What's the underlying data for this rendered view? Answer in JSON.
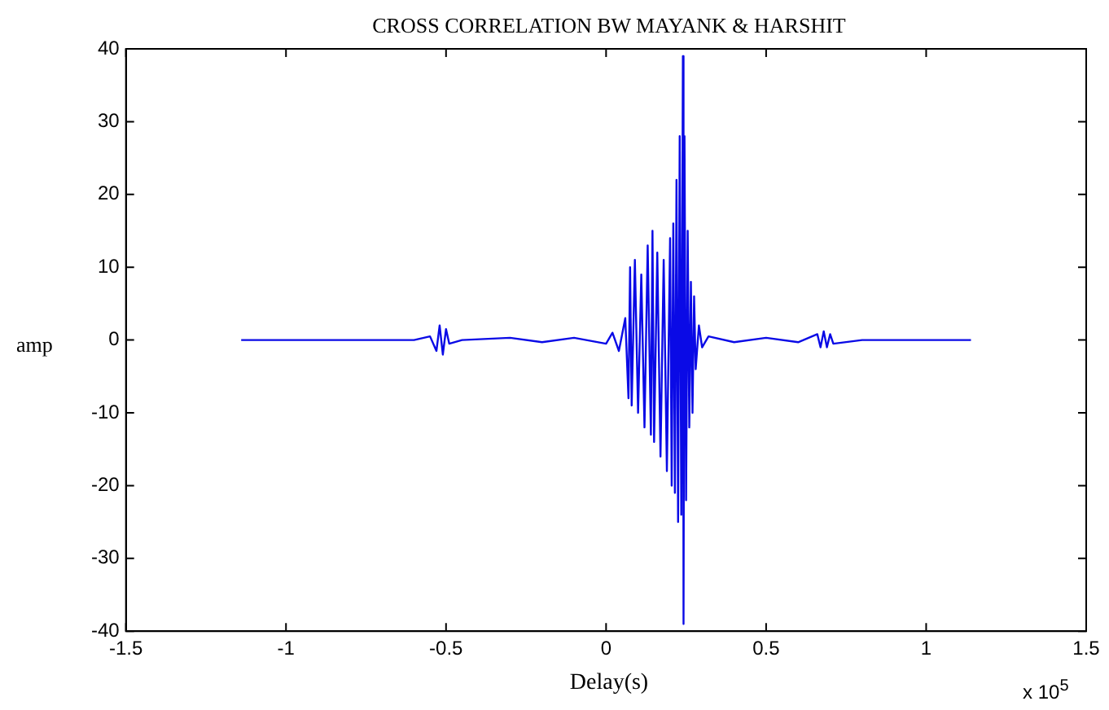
{
  "chart_data": {
    "type": "line",
    "title": "CROSS CORRELATION BW MAYANK & HARSHIT",
    "xlabel": "Delay(s)",
    "ylabel": "amp",
    "annotations": [
      "x 10$^{5}$"
    ],
    "xlim": [
      -1.5,
      1.5
    ],
    "xticks": [
      -1.5,
      -1,
      -0.5,
      0,
      0.5,
      1,
      1.5
    ],
    "ylim": [
      -40,
      40
    ],
    "yticks": [
      -40,
      -30,
      -20,
      -10,
      0,
      10,
      20,
      30,
      40
    ],
    "grid": false,
    "marker": "none",
    "line_style": "solid",
    "series": [
      {
        "color": "#0a0ae6",
        "x": [
          -1.14,
          -0.8,
          -0.6,
          -0.55,
          -0.53,
          -0.52,
          -0.51,
          -0.5,
          -0.49,
          -0.45,
          -0.3,
          -0.2,
          -0.1,
          0,
          0.02,
          0.04,
          0.06,
          0.07,
          0.075,
          0.08,
          0.09,
          0.1,
          0.11,
          0.12,
          0.13,
          0.14,
          0.145,
          0.15,
          0.16,
          0.17,
          0.18,
          0.19,
          0.2,
          0.205,
          0.21,
          0.215,
          0.22,
          0.225,
          0.23,
          0.235,
          0.24,
          0.242,
          0.245,
          0.25,
          0.255,
          0.26,
          0.265,
          0.27,
          0.275,
          0.28,
          0.29,
          0.3,
          0.32,
          0.4,
          0.5,
          0.6,
          0.66,
          0.67,
          0.68,
          0.69,
          0.7,
          0.71,
          0.8,
          1.14
        ],
        "values": [
          0,
          0,
          0,
          0.5,
          -1.5,
          2,
          -2,
          1.5,
          -0.5,
          0,
          0.3,
          -0.3,
          0.3,
          -0.5,
          1,
          -1.5,
          3,
          -8,
          10,
          -9,
          11,
          -10,
          9,
          -12,
          13,
          -13,
          15,
          -14,
          12,
          -16,
          11,
          -18,
          14,
          -20,
          16,
          -21,
          22,
          -25,
          28,
          -24,
          39,
          -39,
          28,
          -22,
          15,
          -12,
          8,
          -10,
          6,
          -4,
          2,
          -1,
          0.5,
          -0.3,
          0.3,
          -0.3,
          0.8,
          -1,
          1.2,
          -1,
          0.8,
          -0.5,
          0,
          0
        ]
      }
    ]
  }
}
